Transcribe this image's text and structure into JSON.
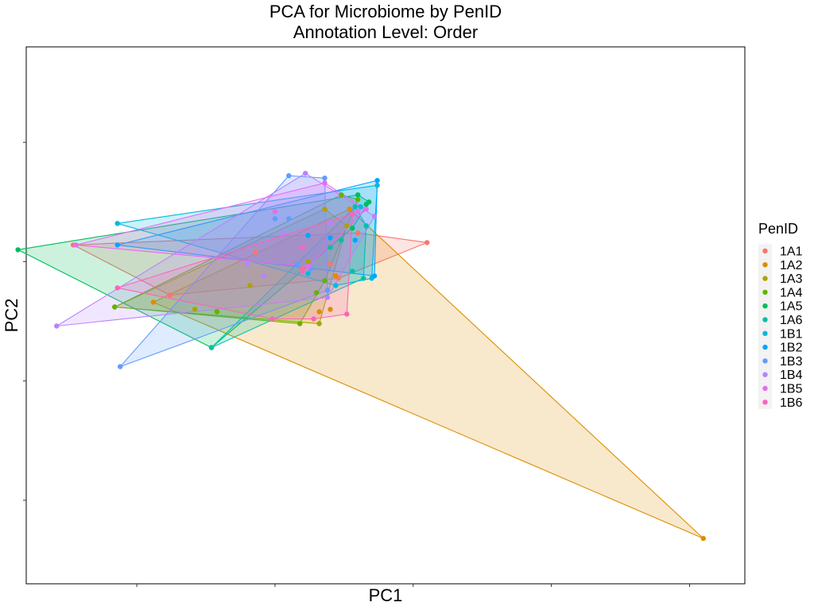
{
  "chart_data": {
    "type": "scatter",
    "title": "PCA for Microbiome by PenID",
    "subtitle": "Annotation Level: Order",
    "xlabel": "PC1",
    "ylabel": "PC2",
    "xlim": [
      -0.9,
      1.7
    ],
    "ylim": [
      -1.35,
      0.9
    ],
    "x_ticks": [
      -0.5,
      0.0,
      0.5,
      1.0,
      1.5
    ],
    "y_ticks": [
      -1.0,
      -0.5,
      0.0,
      0.5
    ],
    "tick_labels_shown": false,
    "grid": false,
    "hulls": true,
    "legend": {
      "title": "PenID",
      "position": "right"
    },
    "series": [
      {
        "name": "1A1",
        "color": "#F8766D",
        "points": [
          [
            -0.73,
            0.07
          ],
          [
            -0.38,
            -0.14
          ],
          [
            0.55,
            0.08
          ],
          [
            0.2,
            -0.01
          ],
          [
            0.3,
            0.12
          ],
          [
            0.1,
            -0.03
          ],
          [
            -0.07,
            0.04
          ],
          [
            0.23,
            -0.07
          ]
        ]
      },
      {
        "name": "1A2",
        "color": "#DB8E00",
        "points": [
          [
            1.55,
            -1.16
          ],
          [
            0.16,
            -0.21
          ],
          [
            -0.44,
            -0.17
          ],
          [
            0.2,
            -0.2
          ],
          [
            0.27,
            0.22
          ],
          [
            0.22,
            -0.06
          ]
        ]
      },
      {
        "name": "1A3",
        "color": "#AEA200",
        "points": [
          [
            -0.58,
            -0.19
          ],
          [
            0.16,
            -0.26
          ],
          [
            -0.29,
            -0.2
          ],
          [
            0.26,
            0.15
          ],
          [
            0.18,
            0.22
          ],
          [
            0.12,
            0.0
          ],
          [
            -0.09,
            -0.1
          ]
        ]
      },
      {
        "name": "1A4",
        "color": "#64B200",
        "points": [
          [
            -0.58,
            -0.19
          ],
          [
            0.09,
            -0.26
          ],
          [
            0.3,
            0.26
          ],
          [
            0.24,
            0.28
          ],
          [
            -0.21,
            -0.21
          ],
          [
            0.15,
            -0.13
          ],
          [
            0.18,
            -0.08
          ]
        ]
      },
      {
        "name": "1A5",
        "color": "#00BD5C",
        "points": [
          [
            -0.93,
            0.05
          ],
          [
            -0.23,
            -0.36
          ],
          [
            0.33,
            0.24
          ],
          [
            0.34,
            0.25
          ],
          [
            0.3,
            0.28
          ],
          [
            0.28,
            0.14
          ]
        ]
      },
      {
        "name": "1A6",
        "color": "#00C1A7",
        "points": [
          [
            -0.23,
            -0.36
          ],
          [
            0.28,
            -0.04
          ],
          [
            0.32,
            -0.07
          ],
          [
            0.33,
            0.15
          ],
          [
            0.29,
            0.23
          ],
          [
            0.24,
            0.09
          ],
          [
            0.2,
            0.06
          ]
        ]
      },
      {
        "name": "1B1",
        "color": "#00BADE",
        "points": [
          [
            -0.57,
            0.16
          ],
          [
            0.37,
            0.32
          ],
          [
            0.35,
            -0.07
          ],
          [
            0.31,
            0.23
          ],
          [
            0.22,
            -0.1
          ],
          [
            0.12,
            -0.05
          ]
        ]
      },
      {
        "name": "1B2",
        "color": "#00A6FF",
        "points": [
          [
            -0.57,
            0.07
          ],
          [
            0.37,
            0.34
          ],
          [
            0.36,
            -0.06
          ],
          [
            0.29,
            0.09
          ],
          [
            0.2,
            0.1
          ],
          [
            0.12,
            0.11
          ]
        ]
      },
      {
        "name": "1B3",
        "color": "#619CFF",
        "points": [
          [
            -0.56,
            -0.44
          ],
          [
            0.05,
            0.36
          ],
          [
            0.18,
            0.35
          ],
          [
            0.0,
            0.18
          ],
          [
            0.05,
            0.18
          ],
          [
            0.19,
            -0.12
          ],
          [
            0.08,
            -0.01
          ],
          [
            0.13,
            -0.03
          ]
        ]
      },
      {
        "name": "1B4",
        "color": "#B983FF",
        "points": [
          [
            -0.79,
            -0.27
          ],
          [
            0.11,
            0.37
          ],
          [
            0.36,
            0.19
          ],
          [
            0.2,
            0.16
          ],
          [
            0.19,
            -0.15
          ],
          [
            -0.04,
            -0.06
          ],
          [
            0.03,
            0.12
          ],
          [
            -0.1,
            -0.01
          ]
        ]
      },
      {
        "name": "1B5",
        "color": "#E76BF3",
        "points": [
          [
            -0.72,
            0.07
          ],
          [
            0.18,
            0.33
          ],
          [
            0.33,
            0.22
          ],
          [
            0.3,
            0.21
          ],
          [
            0.0,
            0.21
          ],
          [
            0.12,
            -0.02
          ]
        ]
      },
      {
        "name": "1B6",
        "color": "#FF62BC",
        "points": [
          [
            -0.57,
            -0.11
          ],
          [
            0.26,
            -0.22
          ],
          [
            0.28,
            0.2
          ],
          [
            0.14,
            -0.24
          ],
          [
            -0.01,
            -0.24
          ],
          [
            0.1,
            -0.04
          ],
          [
            0.1,
            0.06
          ]
        ]
      }
    ]
  }
}
